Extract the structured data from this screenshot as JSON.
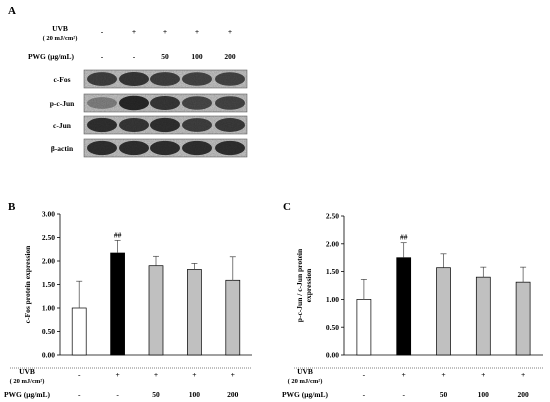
{
  "panel_a": {
    "label": "A",
    "conditions": [
      {
        "label": "UVB",
        "sub": "( 20 mJ/cm²)",
        "values": [
          "-",
          "+",
          "+",
          "+",
          "+"
        ]
      },
      {
        "label": "PWG (μg/mL)",
        "values": [
          "-",
          "-",
          "50",
          "100",
          "200"
        ]
      }
    ],
    "blots": [
      {
        "label": "c-Fos",
        "intensity": [
          0.75,
          0.8,
          0.75,
          0.72,
          0.72
        ]
      },
      {
        "label": "p-c-Jun",
        "intensity": [
          0.35,
          0.9,
          0.8,
          0.7,
          0.72
        ]
      },
      {
        "label": "c-Jun",
        "intensity": [
          0.85,
          0.8,
          0.85,
          0.75,
          0.78
        ]
      },
      {
        "label": "β-actin",
        "intensity": [
          0.85,
          0.85,
          0.85,
          0.85,
          0.85
        ]
      }
    ]
  },
  "chart_data": [
    {
      "panel": "B",
      "type": "bar",
      "ylabel": "c-Fos protein expression",
      "ylim": [
        0,
        3
      ],
      "yticks": [
        "0.00",
        "0.50",
        "1.00",
        "1.50",
        "2.00",
        "2.50",
        "3.00"
      ],
      "values": [
        1.0,
        2.17,
        1.9,
        1.82,
        1.59
      ],
      "errors": [
        0.57,
        0.27,
        0.2,
        0.13,
        0.5
      ],
      "fill": [
        "#ffffff",
        "#000000",
        "#c0c0c0",
        "#c0c0c0",
        "#c0c0c0"
      ],
      "annotations": [
        "",
        "##",
        "",
        "",
        ""
      ],
      "conditions": [
        {
          "label": "UVB",
          "sub": "( 20 mJ/cm²)",
          "values": [
            "-",
            "+",
            "+",
            "+",
            "+"
          ]
        },
        {
          "label": "PWG (μg/mL)",
          "values": [
            "-",
            "-",
            "50",
            "100",
            "200"
          ]
        }
      ]
    },
    {
      "panel": "C",
      "type": "bar",
      "ylabel": "p-c-Jun / c-Jun protein expression",
      "ylim": [
        0,
        2.5
      ],
      "yticks": [
        "0.00",
        "0.50",
        "1.00",
        "1.50",
        "2.00",
        "2.50"
      ],
      "values": [
        1.0,
        1.75,
        1.57,
        1.4,
        1.31
      ],
      "errors": [
        0.36,
        0.27,
        0.25,
        0.18,
        0.27
      ],
      "fill": [
        "#ffffff",
        "#000000",
        "#c0c0c0",
        "#c0c0c0",
        "#c0c0c0"
      ],
      "annotations": [
        "",
        "##",
        "",
        "",
        ""
      ],
      "conditions": [
        {
          "label": "UVB",
          "sub": "( 20 mJ/cm²)",
          "values": [
            "-",
            "+",
            "+",
            "+",
            "+"
          ]
        },
        {
          "label": "PWG (μg/mL)",
          "values": [
            "-",
            "-",
            "50",
            "100",
            "200"
          ]
        }
      ]
    }
  ]
}
